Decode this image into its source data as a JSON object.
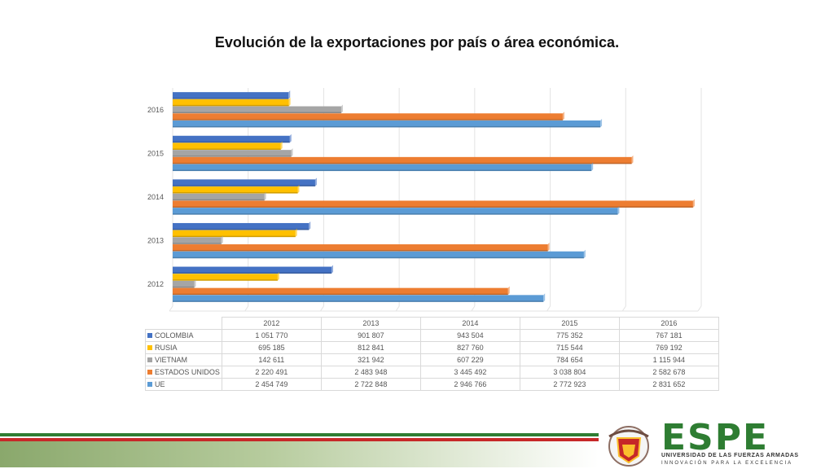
{
  "chart_data": {
    "type": "bar",
    "orientation": "horizontal",
    "title": "Evolución de la exportaciones por país o área económica.",
    "categories": [
      "2012",
      "2013",
      "2014",
      "2015",
      "2016"
    ],
    "series": [
      {
        "name": "COLOMBIA",
        "color": "#4472c4",
        "values": [
          1051770,
          901807,
          943504,
          775352,
          767181
        ],
        "labels": [
          "1 051 770",
          "901 807",
          "943 504",
          "775 352",
          "767 181"
        ]
      },
      {
        "name": "RUSIA",
        "color": "#ffc000",
        "values": [
          695185,
          812841,
          827760,
          715544,
          769192
        ],
        "labels": [
          "695 185",
          "812 841",
          "827 760",
          "715 544",
          "769 192"
        ]
      },
      {
        "name": "VIETNAM",
        "color": "#a5a5a5",
        "values": [
          142611,
          321942,
          607229,
          784654,
          1115944
        ],
        "labels": [
          "142 611",
          "321 942",
          "607 229",
          "784 654",
          "1 115 944"
        ]
      },
      {
        "name": "ESTADOS UNIDOS",
        "color": "#ed7d31",
        "values": [
          2220491,
          2483948,
          3445492,
          3038804,
          2582678
        ],
        "labels": [
          "2 220 491",
          "2 483 948",
          "3 445 492",
          "3 038 804",
          "2 582 678"
        ]
      },
      {
        "name": "UE",
        "color": "#5b9bd5",
        "values": [
          2454749,
          2722848,
          2946766,
          2772923,
          2831652
        ],
        "labels": [
          "2 454 749",
          "2 722 848",
          "2 946 766",
          "2 772 923",
          "2 831 652"
        ]
      }
    ],
    "xlim": [
      0,
      3500000
    ],
    "grid": true,
    "legend": "data-table-below"
  },
  "branding": {
    "logo_text": "ESPE",
    "university": "UNIVERSIDAD DE LAS FUERZAS ARMADAS",
    "motto": "INNOVACIÓN PARA LA EXCELENCIA",
    "colors": {
      "green": "#2e7d32",
      "red": "#c62828"
    }
  }
}
